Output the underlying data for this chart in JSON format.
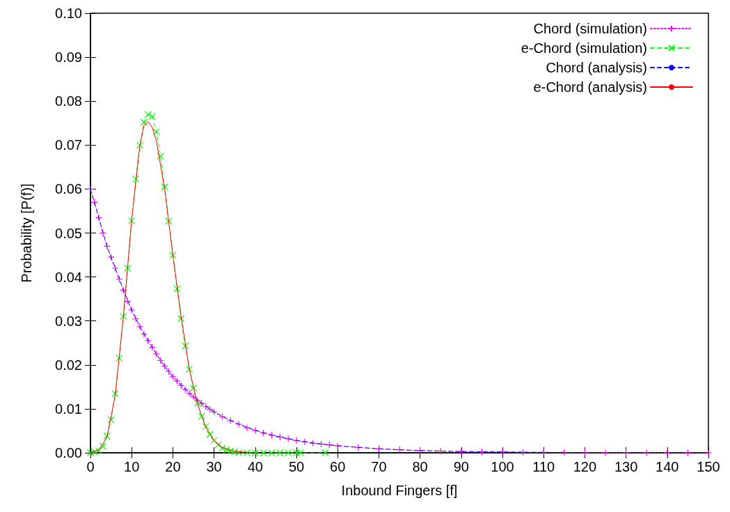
{
  "chart_data": {
    "type": "line",
    "xlabel": "Inbound Fingers [f]",
    "ylabel": "Probability [P(f)]",
    "xlim": [
      0,
      150
    ],
    "xticks": [
      0,
      10,
      20,
      30,
      40,
      50,
      60,
      70,
      80,
      90,
      100,
      110,
      120,
      130,
      140,
      150
    ],
    "ylim": [
      0,
      0.1
    ],
    "yticks": [
      {
        "value": 0,
        "label": "0.00"
      },
      {
        "value": 0.01,
        "label": "0.01"
      },
      {
        "value": 0.02,
        "label": "0.02"
      },
      {
        "value": 0.03,
        "label": "0.03"
      },
      {
        "value": 0.04,
        "label": "0.04"
      },
      {
        "value": 0.05,
        "label": "0.05"
      },
      {
        "value": 0.06,
        "label": "0.06"
      },
      {
        "value": 0.07,
        "label": "0.07"
      },
      {
        "value": 0.08,
        "label": "0.08"
      },
      {
        "value": 0.09,
        "label": "0.09"
      },
      {
        "value": 0.1,
        "label": "0.10"
      }
    ],
    "grid": false,
    "legend": "top right",
    "series": [
      {
        "name": "Chord (simulation)",
        "color": "#ff00ff",
        "marker": "cross",
        "line_style": "dotted",
        "x": [
          0,
          1,
          2,
          3,
          4,
          5,
          6,
          7,
          8,
          9,
          10,
          11,
          12,
          13,
          14,
          15,
          16,
          17,
          18,
          19,
          20,
          21,
          22,
          23,
          24,
          25,
          26,
          27,
          28,
          29,
          30,
          32,
          34,
          36,
          38,
          40,
          42,
          44,
          46,
          48,
          50,
          52,
          54,
          56,
          58,
          60,
          65,
          70,
          75,
          80,
          85,
          90,
          95,
          100,
          105,
          110,
          115,
          120,
          125,
          130,
          135,
          140,
          145,
          150
        ],
        "values": [
          0.06,
          0.057,
          0.0535,
          0.05,
          0.047,
          0.0445,
          0.042,
          0.0395,
          0.037,
          0.0345,
          0.0325,
          0.0305,
          0.0287,
          0.027,
          0.0255,
          0.024,
          0.0225,
          0.021,
          0.0197,
          0.0185,
          0.0173,
          0.0163,
          0.0153,
          0.0144,
          0.0135,
          0.0127,
          0.0119,
          0.0112,
          0.0105,
          0.0099,
          0.0093,
          0.0082,
          0.0073,
          0.0065,
          0.0057,
          0.0051,
          0.0045,
          0.004,
          0.0036,
          0.0032,
          0.0028,
          0.0025,
          0.0022,
          0.002,
          0.0018,
          0.0016,
          0.0012,
          0.0009,
          0.0007,
          0.0005,
          0.0004,
          0.0003,
          0.0002,
          0.0002,
          0.0001,
          0.0001,
          0.0001,
          0,
          0,
          0,
          0,
          0,
          0,
          0
        ]
      },
      {
        "name": "e-Chord (simulation)",
        "color": "#00ff00",
        "marker": "x",
        "line_style": "dashed",
        "x": [
          0,
          1,
          2,
          3,
          4,
          5,
          6,
          7,
          8,
          9,
          10,
          11,
          12,
          13,
          14,
          15,
          16,
          17,
          18,
          19,
          20,
          21,
          22,
          23,
          24,
          25,
          26,
          27,
          28,
          29,
          30,
          31,
          32,
          33,
          34,
          35,
          36,
          38,
          40,
          42,
          44,
          46,
          48,
          50,
          51,
          57
        ],
        "values": [
          0,
          0.0002,
          0.0005,
          0.0015,
          0.0038,
          0.0075,
          0.0135,
          0.0215,
          0.031,
          0.042,
          0.0528,
          0.0623,
          0.07,
          0.0752,
          0.077,
          0.0765,
          0.073,
          0.0675,
          0.0605,
          0.0527,
          0.045,
          0.0373,
          0.0305,
          0.0243,
          0.019,
          0.0147,
          0.0113,
          0.0083,
          0.006,
          0.0042,
          0.0028,
          0.0018,
          0.0011,
          0.0007,
          0.0004,
          0.0002,
          0,
          0,
          0,
          0,
          0,
          0,
          0,
          0,
          0,
          0
        ]
      },
      {
        "name": "Chord (analysis)",
        "color": "#0000ff",
        "marker": "none",
        "line_style": "dashed",
        "x": [
          0,
          2,
          4,
          6,
          8,
          10,
          12,
          14,
          16,
          18,
          20,
          25,
          30,
          35,
          40,
          45,
          50,
          55,
          60,
          70,
          80,
          90,
          100,
          110,
          120
        ],
        "values": [
          0.06,
          0.0535,
          0.047,
          0.042,
          0.037,
          0.0325,
          0.0287,
          0.0255,
          0.0225,
          0.0197,
          0.0173,
          0.0127,
          0.0093,
          0.0069,
          0.0051,
          0.0038,
          0.0028,
          0.0021,
          0.0016,
          0.0009,
          0.0005,
          0.0003,
          0.0002,
          0.0001,
          0
        ]
      },
      {
        "name": "e-Chord (analysis)",
        "color": "#ff0000",
        "marker": "none",
        "line_style": "solid",
        "x": [
          0,
          2,
          4,
          6,
          8,
          10,
          12,
          13,
          14,
          15,
          16,
          18,
          20,
          22,
          24,
          26,
          28,
          30,
          32,
          35,
          40
        ],
        "values": [
          0,
          0.0006,
          0.0035,
          0.013,
          0.031,
          0.053,
          0.07,
          0.0745,
          0.0753,
          0.074,
          0.071,
          0.06,
          0.045,
          0.031,
          0.019,
          0.011,
          0.0058,
          0.0028,
          0.0012,
          0.0003,
          0
        ]
      }
    ]
  }
}
